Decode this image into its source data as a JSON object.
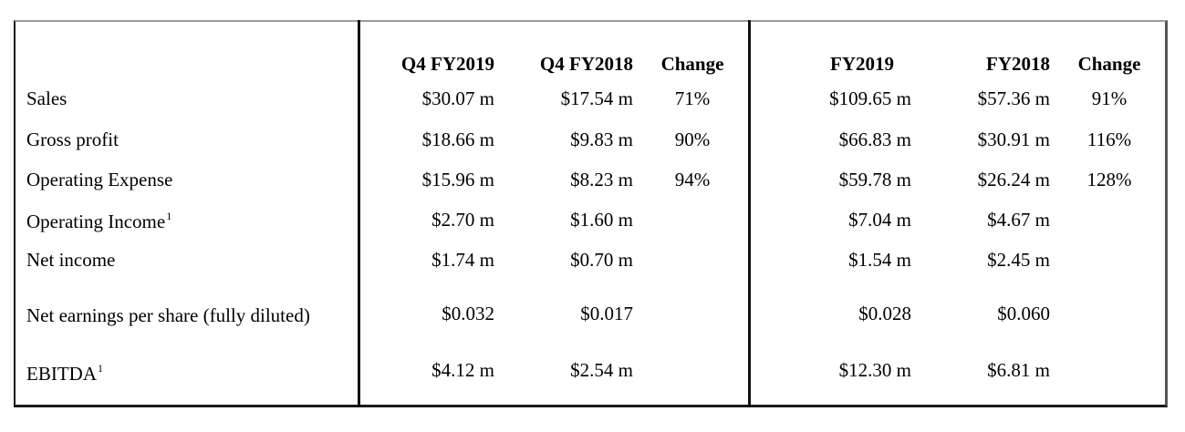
{
  "headers": {
    "q4_2019": "Q4 FY2019",
    "q4_2018": "Q4 FY2018",
    "change_q": "Change",
    "fy2019": "FY2019",
    "fy2018": "FY2018",
    "change_fy": "Change"
  },
  "rows": [
    {
      "label": "Sales",
      "sup": "",
      "q4_2019": "$30.07 m",
      "q4_2018": "$17.54 m",
      "change_q": "71%",
      "fy2019": "$109.65 m",
      "fy2018": "$57.36 m",
      "change_fy": "91%"
    },
    {
      "label": "Gross profit",
      "sup": "",
      "q4_2019": "$18.66 m",
      "q4_2018": "$9.83 m",
      "change_q": "90%",
      "fy2019": "$66.83 m",
      "fy2018": "$30.91 m",
      "change_fy": "116%"
    },
    {
      "label": "Operating Expense",
      "sup": "",
      "q4_2019": "$15.96 m",
      "q4_2018": "$8.23 m",
      "change_q": "94%",
      "fy2019": "$59.78 m",
      "fy2018": "$26.24 m",
      "change_fy": "128%"
    },
    {
      "label": "Operating Income",
      "sup": "1",
      "q4_2019": "$2.70 m",
      "q4_2018": "$1.60 m",
      "change_q": "",
      "fy2019": "$7.04 m",
      "fy2018": "$4.67 m",
      "change_fy": ""
    },
    {
      "label": "Net income",
      "sup": "",
      "q4_2019": "$1.74 m",
      "q4_2018": "$0.70 m",
      "change_q": "",
      "fy2019": "$1.54 m",
      "fy2018": "$2.45 m",
      "change_fy": ""
    },
    {
      "label": "Net earnings per share (fully diluted)",
      "sup": "",
      "q4_2019": "$0.032",
      "q4_2018": "$0.017",
      "change_q": "",
      "fy2019": "$0.028",
      "fy2018": "$0.060",
      "change_fy": ""
    },
    {
      "label": "EBITDA",
      "sup": "1",
      "q4_2019": "$4.12 m",
      "q4_2018": "$2.54 m",
      "change_q": "",
      "fy2019": "$12.30 m",
      "fy2018": "$6.81 m",
      "change_fy": ""
    }
  ]
}
